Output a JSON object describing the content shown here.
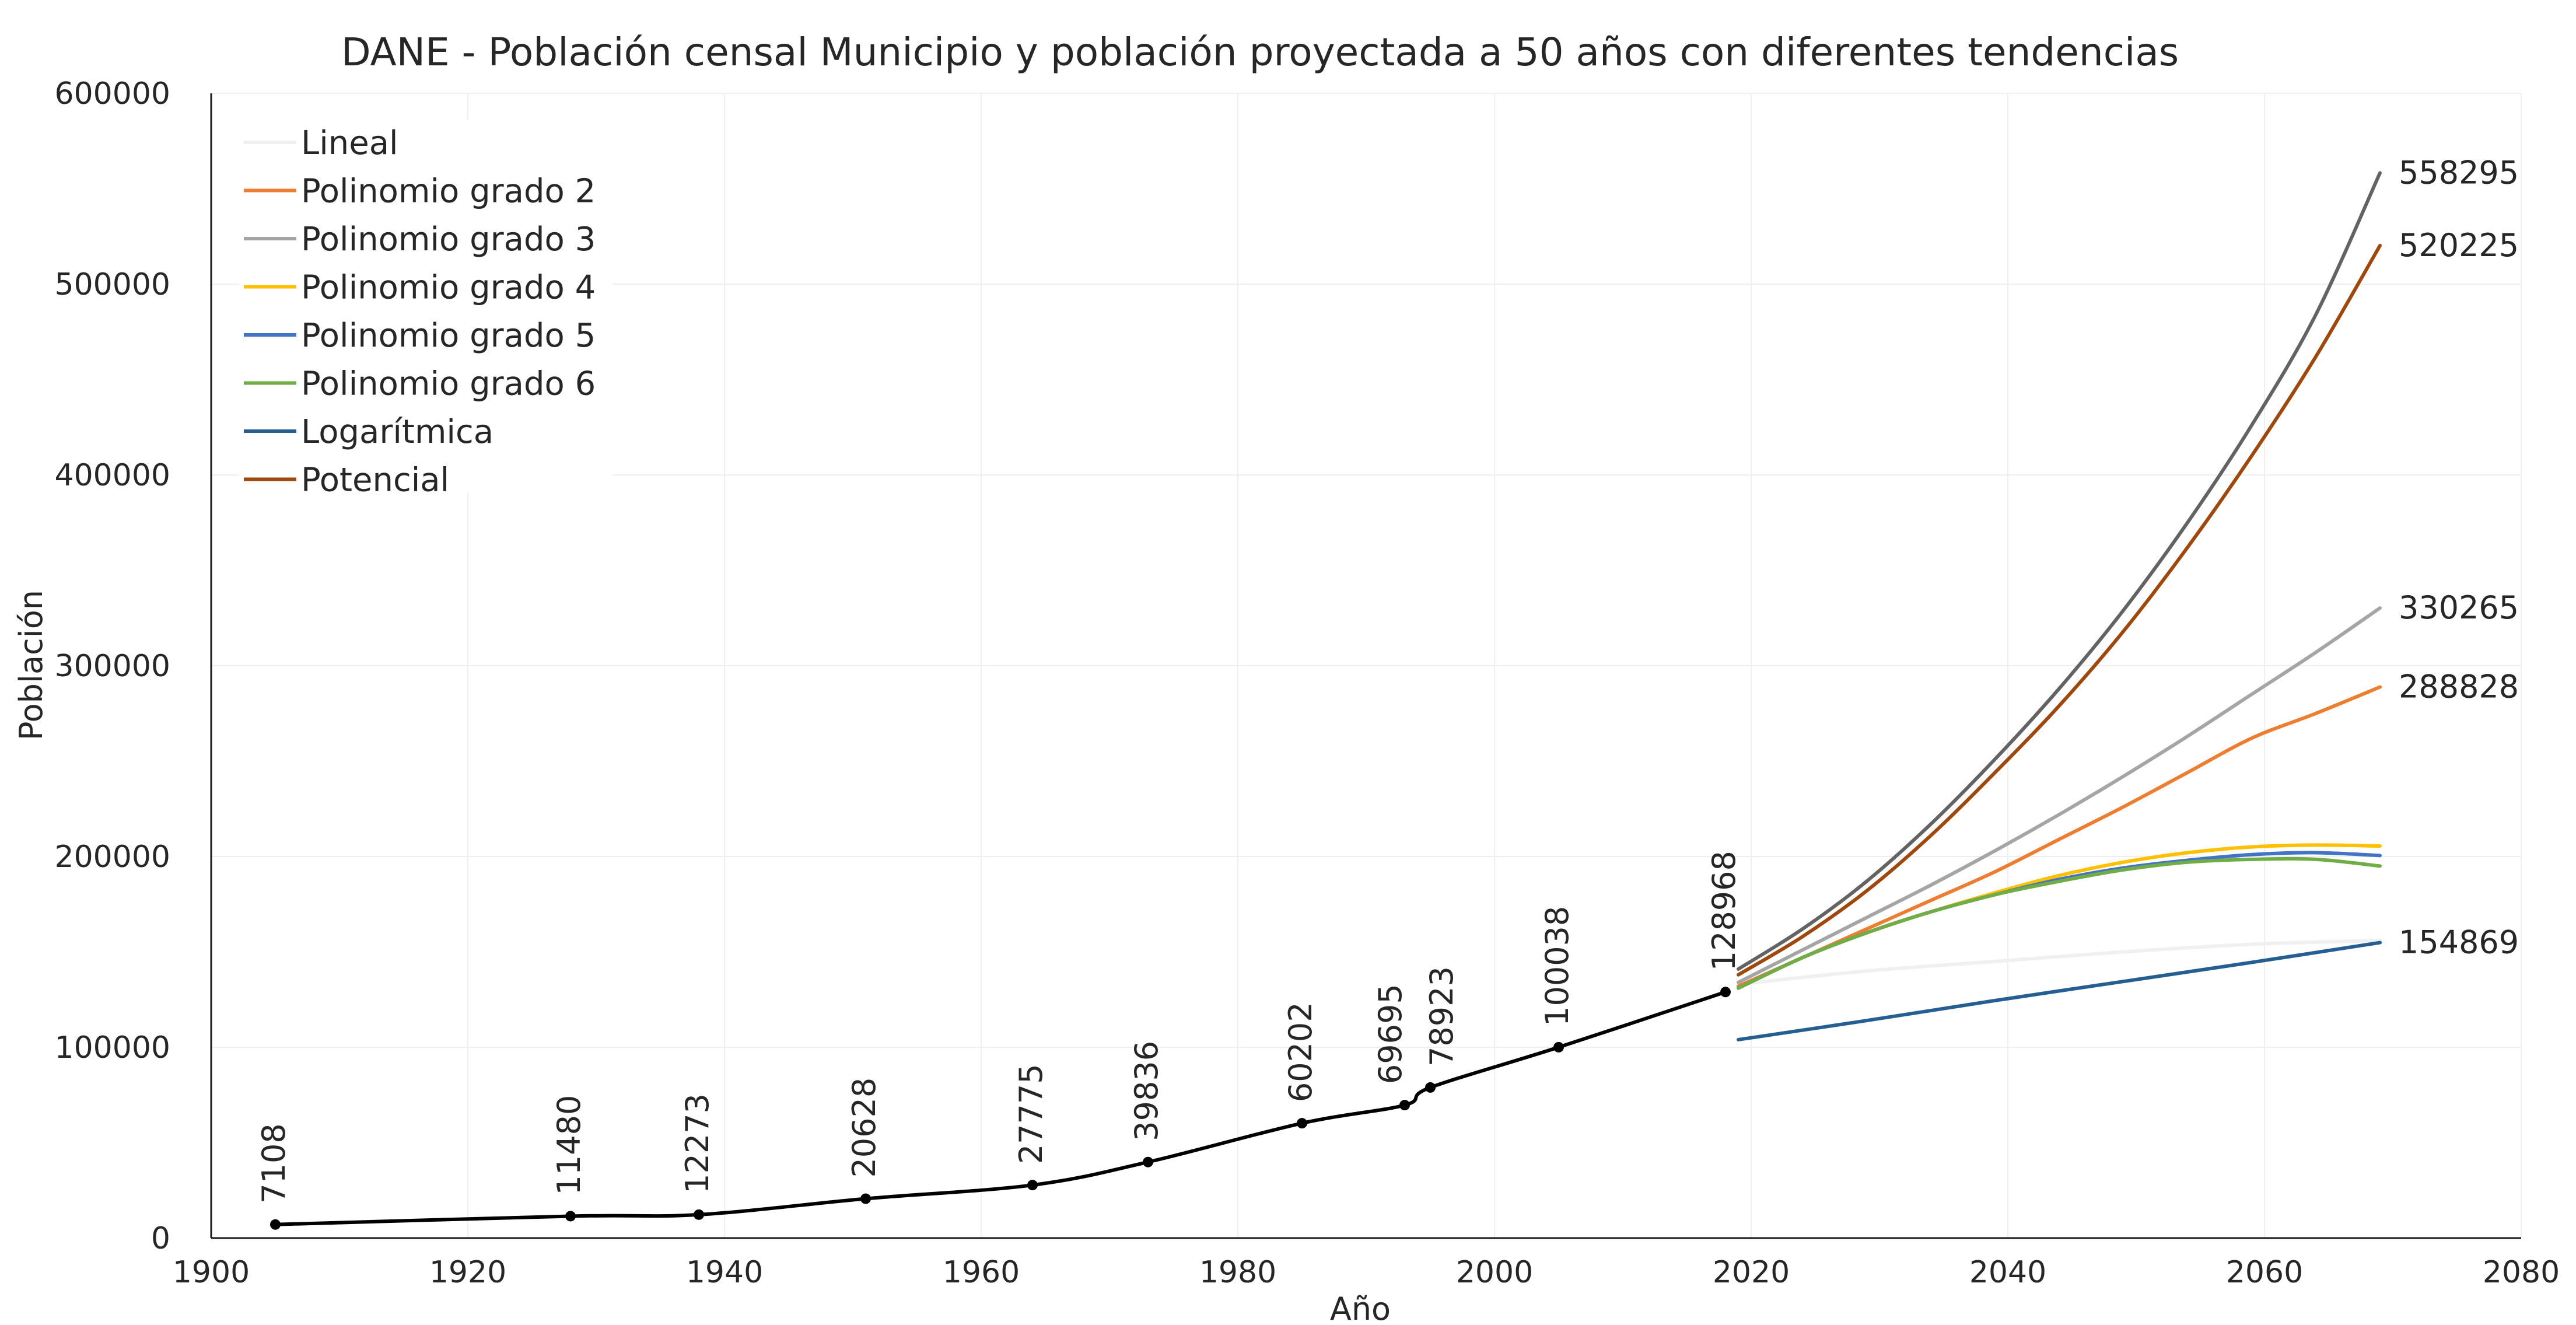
{
  "chart_data": {
    "type": "line",
    "title": "DANE - Población censal Municipio y población proyectada a 50 años con diferentes tendencias",
    "xlabel": "Año",
    "ylabel": "Población",
    "xlim": [
      1900,
      2080
    ],
    "ylim": [
      0,
      600000
    ],
    "x_ticks": [
      1900,
      1920,
      1940,
      1960,
      1980,
      2000,
      2020,
      2040,
      2060,
      2080
    ],
    "y_ticks": [
      0,
      100000,
      200000,
      300000,
      400000,
      500000,
      600000
    ],
    "x_tick_labels": [
      "1900",
      "1920",
      "1940",
      "1960",
      "1980",
      "2000",
      "2020",
      "2040",
      "2060",
      "2080"
    ],
    "y_tick_labels": [
      "0",
      "100000",
      "200000",
      "300000",
      "400000",
      "500000",
      "600000"
    ],
    "grid": true,
    "legend_position": "top-left",
    "census": {
      "color": "#000000",
      "x": [
        1905,
        1928,
        1938,
        1951,
        1964,
        1973,
        1985,
        1993,
        1995,
        2005,
        2018
      ],
      "y": [
        7108,
        11480,
        12273,
        20628,
        27775,
        39836,
        60202,
        69695,
        78923,
        100038,
        128968
      ],
      "labels": [
        "7108",
        "11480",
        "12273",
        "20628",
        "27775",
        "39836",
        "60202",
        "69695",
        "78923",
        "100038",
        "128968"
      ]
    },
    "series": [
      {
        "name": "Lineal",
        "color": "#f0f0f0",
        "x": [
          2019,
          2029,
          2039,
          2049,
          2059,
          2069
        ],
        "y": [
          133000,
          140000,
          145000,
          150000,
          154000,
          156000
        ]
      },
      {
        "name": "Polinomio grado 2",
        "color": "#ed7d31",
        "x": [
          2019,
          2024,
          2029,
          2034,
          2039,
          2044,
          2049,
          2054,
          2059,
          2064,
          2069
        ],
        "y": [
          132000,
          147000,
          162000,
          177000,
          192000,
          209000,
          226000,
          244000,
          262000,
          275000,
          288828
        ]
      },
      {
        "name": "Polinomio grado 3",
        "color": "#a5a5a5",
        "x": [
          2019,
          2024,
          2029,
          2034,
          2039,
          2044,
          2049,
          2054,
          2059,
          2064,
          2069
        ],
        "y": [
          134000,
          151000,
          168000,
          185000,
          203000,
          222000,
          242000,
          263000,
          285000,
          307000,
          330265
        ]
      },
      {
        "name": "Polinomio grado 4",
        "color": "#ffc000",
        "x": [
          2019,
          2024,
          2029,
          2034,
          2039,
          2044,
          2049,
          2054,
          2059,
          2064,
          2069
        ],
        "y": [
          131000,
          147000,
          160000,
          171000,
          181000,
          190000,
          197000,
          202000,
          205000,
          206000,
          205500
        ]
      },
      {
        "name": "Polinomio grado 5",
        "color": "#4472c4",
        "x": [
          2019,
          2024,
          2029,
          2034,
          2039,
          2044,
          2049,
          2054,
          2059,
          2064,
          2069
        ],
        "y": [
          131000,
          147000,
          160000,
          171000,
          180000,
          188000,
          194000,
          198000,
          201000,
          202000,
          200500
        ]
      },
      {
        "name": "Polinomio grado 6",
        "color": "#70ad47",
        "x": [
          2019,
          2024,
          2029,
          2034,
          2039,
          2044,
          2049,
          2054,
          2059,
          2064,
          2069
        ],
        "y": [
          131000,
          147000,
          160000,
          171000,
          180000,
          187000,
          193000,
          197000,
          198500,
          198500,
          195000
        ]
      },
      {
        "name": "Logarítmica",
        "color": "#255e91",
        "x": [
          2019,
          2029,
          2039,
          2049,
          2059,
          2069
        ],
        "y": [
          104000,
          114000,
          124500,
          134500,
          144500,
          154869
        ]
      },
      {
        "name": "Potencial",
        "color": "#9e480e",
        "x": [
          2019,
          2024,
          2029,
          2034,
          2039,
          2044,
          2049,
          2054,
          2059,
          2064,
          2069
        ],
        "y": [
          138000,
          158000,
          182000,
          211000,
          244000,
          279000,
          318000,
          362000,
          410000,
          462000,
          520225
        ]
      },
      {
        "name": "",
        "color": "#636363",
        "x": [
          2019,
          2024,
          2029,
          2034,
          2039,
          2044,
          2049,
          2054,
          2059,
          2064,
          2069
        ],
        "y": [
          141000,
          162000,
          187000,
          217000,
          251000,
          288000,
          329000,
          375000,
          426000,
          484000,
          558295
        ]
      }
    ],
    "end_labels": [
      {
        "text": "558295",
        "value": 558295
      },
      {
        "text": "520225",
        "value": 520225
      },
      {
        "text": "330265",
        "value": 330265
      },
      {
        "text": "288828",
        "value": 288828
      },
      {
        "text": "154869",
        "value": 154869
      }
    ]
  }
}
